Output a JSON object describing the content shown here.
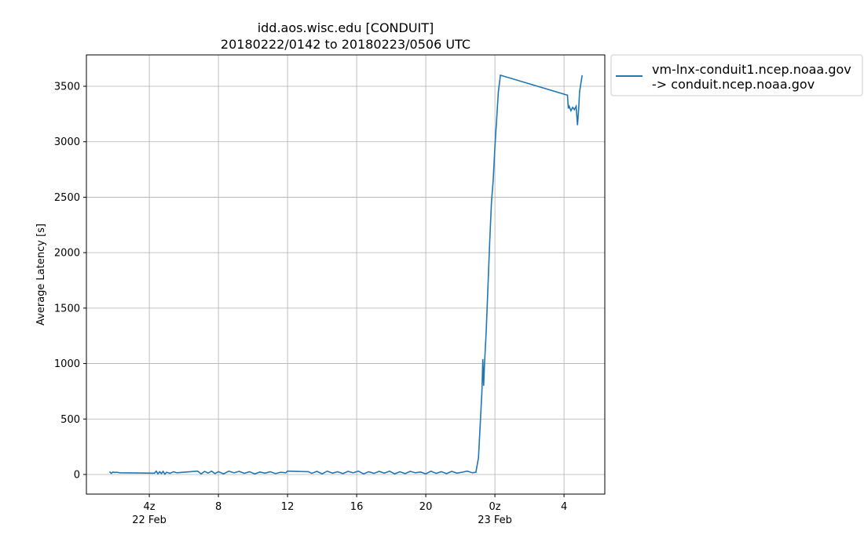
{
  "chart_data": {
    "type": "line",
    "title": "idd.aos.wisc.edu [CONDUIT]",
    "subtitle": "20180222/0142 to 20180223/0506 UTC",
    "y_label": "Average Latency [s]",
    "xlim": [
      0.36,
      30.36
    ],
    "xticks": [
      {
        "value": 4,
        "label": "4z\n22 Feb"
      },
      8,
      12,
      16,
      20,
      {
        "value": 24,
        "label": "0z\n23 Feb"
      },
      {
        "value": 28,
        "label": "4"
      }
    ],
    "ylim": [
      -177,
      3783
    ],
    "yticks": [
      0,
      500,
      1000,
      1500,
      2000,
      2500,
      3000,
      3500
    ],
    "grid": true,
    "legend": "outside upper right",
    "series": [
      {
        "name": "vm-lnx-conduit1.ncep.noaa.gov\n-> conduit.ncep.noaa.gov",
        "color": "#1f77b4",
        "x": [
          1.7,
          1.8,
          1.9,
          2.0,
          2.1,
          2.3,
          4.3,
          4.4,
          4.5,
          4.6,
          4.7,
          4.8,
          4.9,
          5.0,
          5.2,
          5.4,
          5.6,
          6.8,
          7.0,
          7.2,
          7.4,
          7.6,
          7.8,
          8.0,
          8.3,
          8.6,
          8.9,
          9.2,
          9.5,
          9.8,
          10.1,
          10.4,
          10.7,
          11.0,
          11.3,
          11.6,
          11.9,
          12.0,
          13.2,
          13.4,
          13.7,
          14.0,
          14.3,
          14.6,
          14.9,
          15.2,
          15.5,
          15.8,
          16.1,
          16.4,
          16.7,
          17.0,
          17.3,
          17.6,
          17.9,
          18.2,
          18.5,
          18.8,
          19.1,
          19.4,
          19.7,
          20.0,
          20.3,
          20.6,
          20.9,
          21.2,
          21.5,
          21.8,
          22.1,
          22.4,
          22.7,
          22.9,
          23.05,
          23.15,
          23.25,
          23.3,
          23.35,
          23.4,
          23.5,
          23.6,
          23.7,
          23.8,
          23.9,
          24.0,
          24.1,
          24.2,
          24.32,
          28.2,
          28.25,
          28.3,
          28.4,
          28.5,
          28.6,
          28.7,
          28.78,
          28.85,
          28.9,
          28.95,
          29.0,
          29.05
        ],
        "values": [
          25,
          10,
          22,
          18,
          20,
          15,
          12,
          30,
          5,
          25,
          8,
          28,
          3,
          20,
          10,
          25,
          15,
          30,
          5,
          28,
          12,
          30,
          8,
          25,
          5,
          30,
          15,
          28,
          10,
          25,
          5,
          22,
          12,
          25,
          8,
          20,
          15,
          30,
          25,
          10,
          28,
          5,
          30,
          12,
          25,
          8,
          28,
          15,
          30,
          5,
          25,
          10,
          28,
          12,
          30,
          5,
          25,
          8,
          28,
          15,
          22,
          5,
          30,
          10,
          25,
          8,
          28,
          12,
          20,
          30,
          15,
          20,
          150,
          450,
          750,
          1040,
          800,
          1000,
          1300,
          1700,
          2100,
          2450,
          2650,
          2950,
          3200,
          3450,
          3600,
          3420,
          3300,
          3320,
          3280,
          3310,
          3290,
          3320,
          3150,
          3300,
          3450,
          3500,
          3550,
          3600
        ]
      }
    ]
  }
}
